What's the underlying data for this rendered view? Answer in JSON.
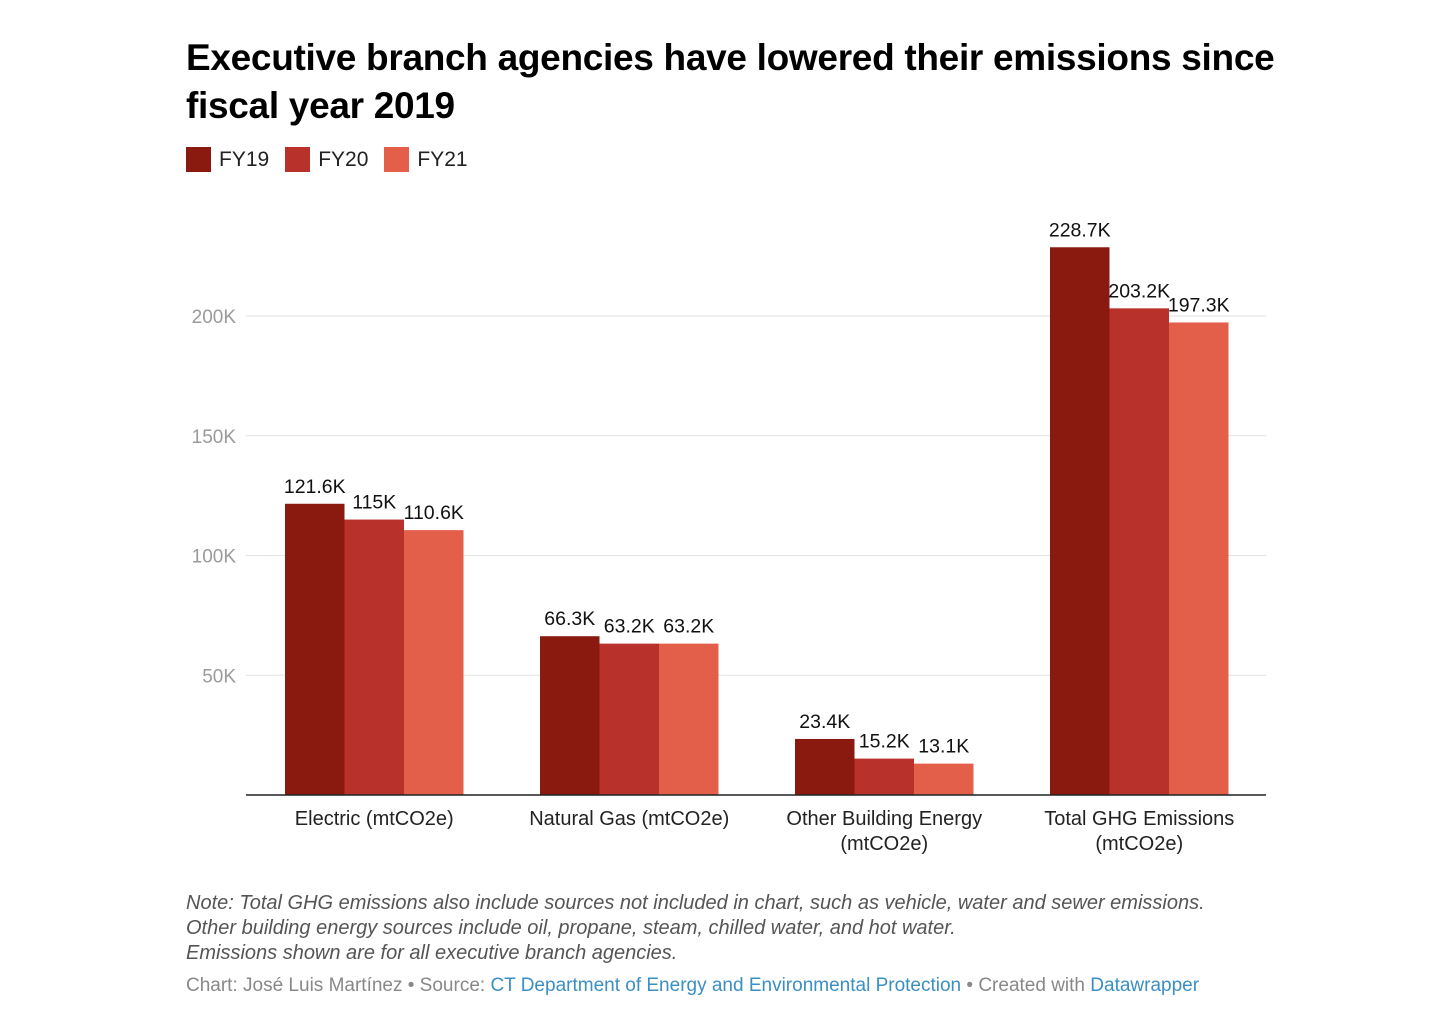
{
  "title": "Executive branch agencies have lowered their emissions since fiscal year 2019",
  "legend": [
    {
      "label": "FY19",
      "color": "#8a1a10"
    },
    {
      "label": "FY20",
      "color": "#b8312a"
    },
    {
      "label": "FY21",
      "color": "#e45f4a"
    }
  ],
  "chart_data": {
    "type": "bar",
    "title": "Executive branch agencies have lowered their emissions since fiscal year 2019",
    "categories": [
      "Electric (mtCO2e)",
      "Natural Gas (mtCO2e)",
      "Other Building Energy (mtCO2e)",
      "Total GHG Emissions (mtCO2e)"
    ],
    "category_lines": [
      [
        "Electric (mtCO2e)"
      ],
      [
        "Natural Gas (mtCO2e)"
      ],
      [
        "Other Building Energy",
        "(mtCO2e)"
      ],
      [
        "Total GHG Emissions",
        "(mtCO2e)"
      ]
    ],
    "series": [
      {
        "name": "FY19",
        "values": [
          121600,
          66300,
          23400,
          228700
        ],
        "labels": [
          "121.6K",
          "66.3K",
          "23.4K",
          "228.7K"
        ]
      },
      {
        "name": "FY20",
        "values": [
          115000,
          63200,
          15200,
          203200
        ],
        "labels": [
          "115K",
          "63.2K",
          "15.2K",
          "203.2K"
        ]
      },
      {
        "name": "FY21",
        "values": [
          110600,
          63200,
          13100,
          197300
        ],
        "labels": [
          "110.6K",
          "63.2K",
          "13.1K",
          "197.3K"
        ]
      }
    ],
    "yticks": [
      {
        "value": 50000,
        "label": "50K"
      },
      {
        "value": 100000,
        "label": "100K"
      },
      {
        "value": 150000,
        "label": "150K"
      },
      {
        "value": 200000,
        "label": "200K"
      }
    ],
    "ylim": [
      0,
      228700
    ],
    "grid": true,
    "legend_position": "top-left",
    "xlabel": "",
    "ylabel": ""
  },
  "notes": [
    "Note: Total GHG emissions also include sources not included in chart, such as vehicle, water and sewer emissions.",
    "Other building energy sources include oil, propane, steam, chilled water, and hot water.",
    "Emissions shown are for all executive branch agencies."
  ],
  "byline": {
    "chart_prefix": "Chart: José Luis Martínez • Source: ",
    "source_link": "CT Department of Energy and Environmental Protection",
    "created_prefix": " • Created with ",
    "created_link": "Datawrapper"
  }
}
